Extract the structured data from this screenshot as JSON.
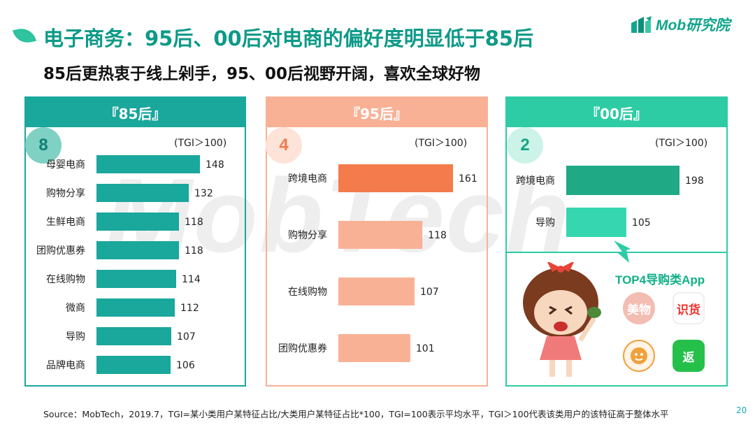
{
  "header": {
    "title": "电子商务：95后、00后对电商的偏好度明显低于85后",
    "subtitle": "85后更热衷于线上剁手，95、00后视野开阔，喜欢全球好物",
    "logo_text": "Mob研究院"
  },
  "watermark": "MobTech",
  "colors": {
    "panel_85": "#1aa79c",
    "panel_95": "#f9b196",
    "panel_00": "#2dcca4",
    "bar_85": "#1aa79c",
    "bar_95_top": "#f47b4b",
    "bar_95": "#f9b196",
    "bar_00_top": "#1fa985",
    "bar_00": "#35d6b0"
  },
  "panels": [
    {
      "label": "『85后』",
      "count": "8",
      "tgi_note": "(TGI＞100)"
    },
    {
      "label": "『95后』",
      "count": "4",
      "tgi_note": "(TGI＞100)"
    },
    {
      "label": "『00后』",
      "count": "2",
      "tgi_note": "(TGI＞100)"
    }
  ],
  "top4": {
    "title": "TOP4导购类App",
    "apps": [
      {
        "name": "美物",
        "icon": "meiwu-app-icon",
        "color": "#f3bdb2"
      },
      {
        "name": "识货",
        "icon": "shihuo-app-icon",
        "color": "#f3302c"
      },
      {
        "name": "",
        "icon": "mascot-app-icon",
        "color": "#f2a03a"
      },
      {
        "name": "返",
        "icon": "fan-app-icon",
        "color": "#25c04a"
      }
    ]
  },
  "footer": {
    "source": "Source：MobTech，2019.7，TGI=某小类用户某特征占比/大类用户某特征占比*100，TGI=100表示平均水平，TGI＞100代表该类用户的该特征高于整体水平",
    "page": "20"
  },
  "chart_data": [
    {
      "type": "bar",
      "orientation": "horizontal",
      "title": "『85后』",
      "categories": [
        "母婴电商",
        "购物分享",
        "生鲜电商",
        "团购优惠券",
        "在线购物",
        "微商",
        "导购",
        "品牌电商"
      ],
      "values": [
        148,
        132,
        118,
        118,
        114,
        112,
        107,
        106
      ],
      "xlim": [
        0,
        160
      ],
      "grid": false
    },
    {
      "type": "bar",
      "orientation": "horizontal",
      "title": "『95后』",
      "categories": [
        "跨境电商",
        "购物分享",
        "在线购物",
        "团购优惠券"
      ],
      "values": [
        161,
        118,
        107,
        101
      ],
      "xlim": [
        0,
        170
      ],
      "grid": false
    },
    {
      "type": "bar",
      "orientation": "horizontal",
      "title": "『00后』",
      "categories": [
        "跨境电商",
        "导购"
      ],
      "values": [
        198,
        105
      ],
      "xlim": [
        0,
        215
      ],
      "grid": false
    }
  ]
}
